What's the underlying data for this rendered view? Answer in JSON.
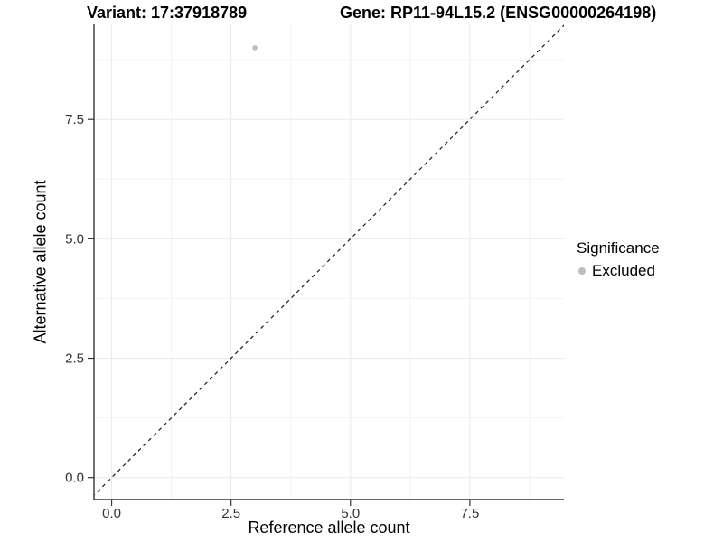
{
  "chart_data": {
    "type": "scatter",
    "titles": {
      "left": "Variant: 17:37918789",
      "right": "Gene: RP11-94L15.2 (ENSG00000264198)"
    },
    "xlabel": "Reference allele count",
    "ylabel": "Alternative allele count",
    "xlim": [
      -0.37,
      9.47
    ],
    "ylim": [
      -0.46,
      9.49
    ],
    "xticks": [
      0,
      2.5,
      5,
      7.5
    ],
    "yticks": [
      0,
      2.5,
      5,
      7.5
    ],
    "xtick_labels": [
      "0.0",
      "2.5",
      "5.0",
      "7.5"
    ],
    "ytick_labels": [
      "0.0",
      "2.5",
      "5.0",
      "7.5"
    ],
    "grid": {
      "show": true,
      "major_color": "#ebebeb",
      "minor_color": "#f4f4f4",
      "minor_step": 1.25
    },
    "reference_line": {
      "slope": 1,
      "intercept": 0,
      "style": "dashed",
      "color": "#1a1a1a"
    },
    "axis_color": "#333333",
    "series": [
      {
        "name": "Excluded",
        "color": "#bdbdbd",
        "points": [
          {
            "x": 3,
            "y": 9
          }
        ]
      }
    ],
    "legend": {
      "title": "Significance",
      "position": "right",
      "entries": [
        {
          "label": "Excluded",
          "color": "#bdbdbd"
        }
      ]
    }
  }
}
